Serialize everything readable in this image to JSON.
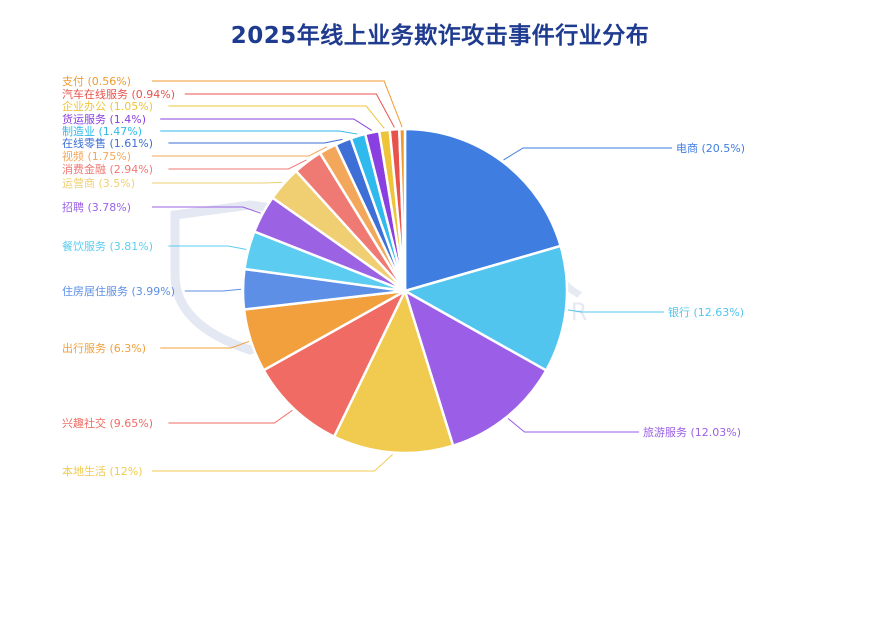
{
  "chart_data": {
    "type": "pie",
    "title": "2025年线上业务欺诈攻击事件行业分布",
    "watermark": {
      "cn": "威胁猎人",
      "en": "THREAT HUNTER"
    },
    "slices": [
      {
        "label": "电商",
        "value": 20.5,
        "display": "电商 (20.5%)",
        "color": "#3f7de0"
      },
      {
        "label": "银行",
        "value": 12.63,
        "display": "银行 (12.63%)",
        "color": "#52c5ef"
      },
      {
        "label": "旅游服务",
        "value": 12.03,
        "display": "旅游服务 (12.03%)",
        "color": "#9a5fe6"
      },
      {
        "label": "本地生活",
        "value": 12,
        "display": "本地生活 (12%)",
        "color": "#f0cb4f"
      },
      {
        "label": "兴趣社交",
        "value": 9.65,
        "display": "兴趣社交 (9.65%)",
        "color": "#ef6b63"
      },
      {
        "label": "出行服务",
        "value": 6.3,
        "display": "出行服务 (6.3%)",
        "color": "#f2a03d"
      },
      {
        "label": "住房居住服务",
        "value": 3.99,
        "display": "住房居住服务 (3.99%)",
        "color": "#5d8fe6"
      },
      {
        "label": "餐饮服务",
        "value": 3.81,
        "display": "餐饮服务 (3.81%)",
        "color": "#5ccdf0"
      },
      {
        "label": "招聘",
        "value": 3.78,
        "display": "招聘 (3.78%)",
        "color": "#9b63e3"
      },
      {
        "label": "运营商",
        "value": 3.5,
        "display": "运营商 (3.5%)",
        "color": "#efcf72"
      },
      {
        "label": "消费金融",
        "value": 2.94,
        "display": "消费金融 (2.94%)",
        "color": "#ef7a74"
      },
      {
        "label": "视频",
        "value": 1.75,
        "display": "视频 (1.75%)",
        "color": "#f3a75a"
      },
      {
        "label": "在线零售",
        "value": 1.61,
        "display": "在线零售 (1.61%)",
        "color": "#3d6fd6"
      },
      {
        "label": "制造业",
        "value": 1.47,
        "display": "制造业 (1.47%)",
        "color": "#2fb9ec"
      },
      {
        "label": "货运服务",
        "value": 1.4,
        "display": "货运服务 (1.4%)",
        "color": "#8a3fe0"
      },
      {
        "label": "企业办公",
        "value": 1.05,
        "display": "企业办公 (1.05%)",
        "color": "#eec43a"
      },
      {
        "label": "汽车在线服务",
        "value": 0.94,
        "display": "汽车在线服务 (0.94%)",
        "color": "#e8534c"
      },
      {
        "label": "支付",
        "value": 0.56,
        "display": "支付 (0.56%)",
        "color": "#f09a2e"
      }
    ]
  }
}
